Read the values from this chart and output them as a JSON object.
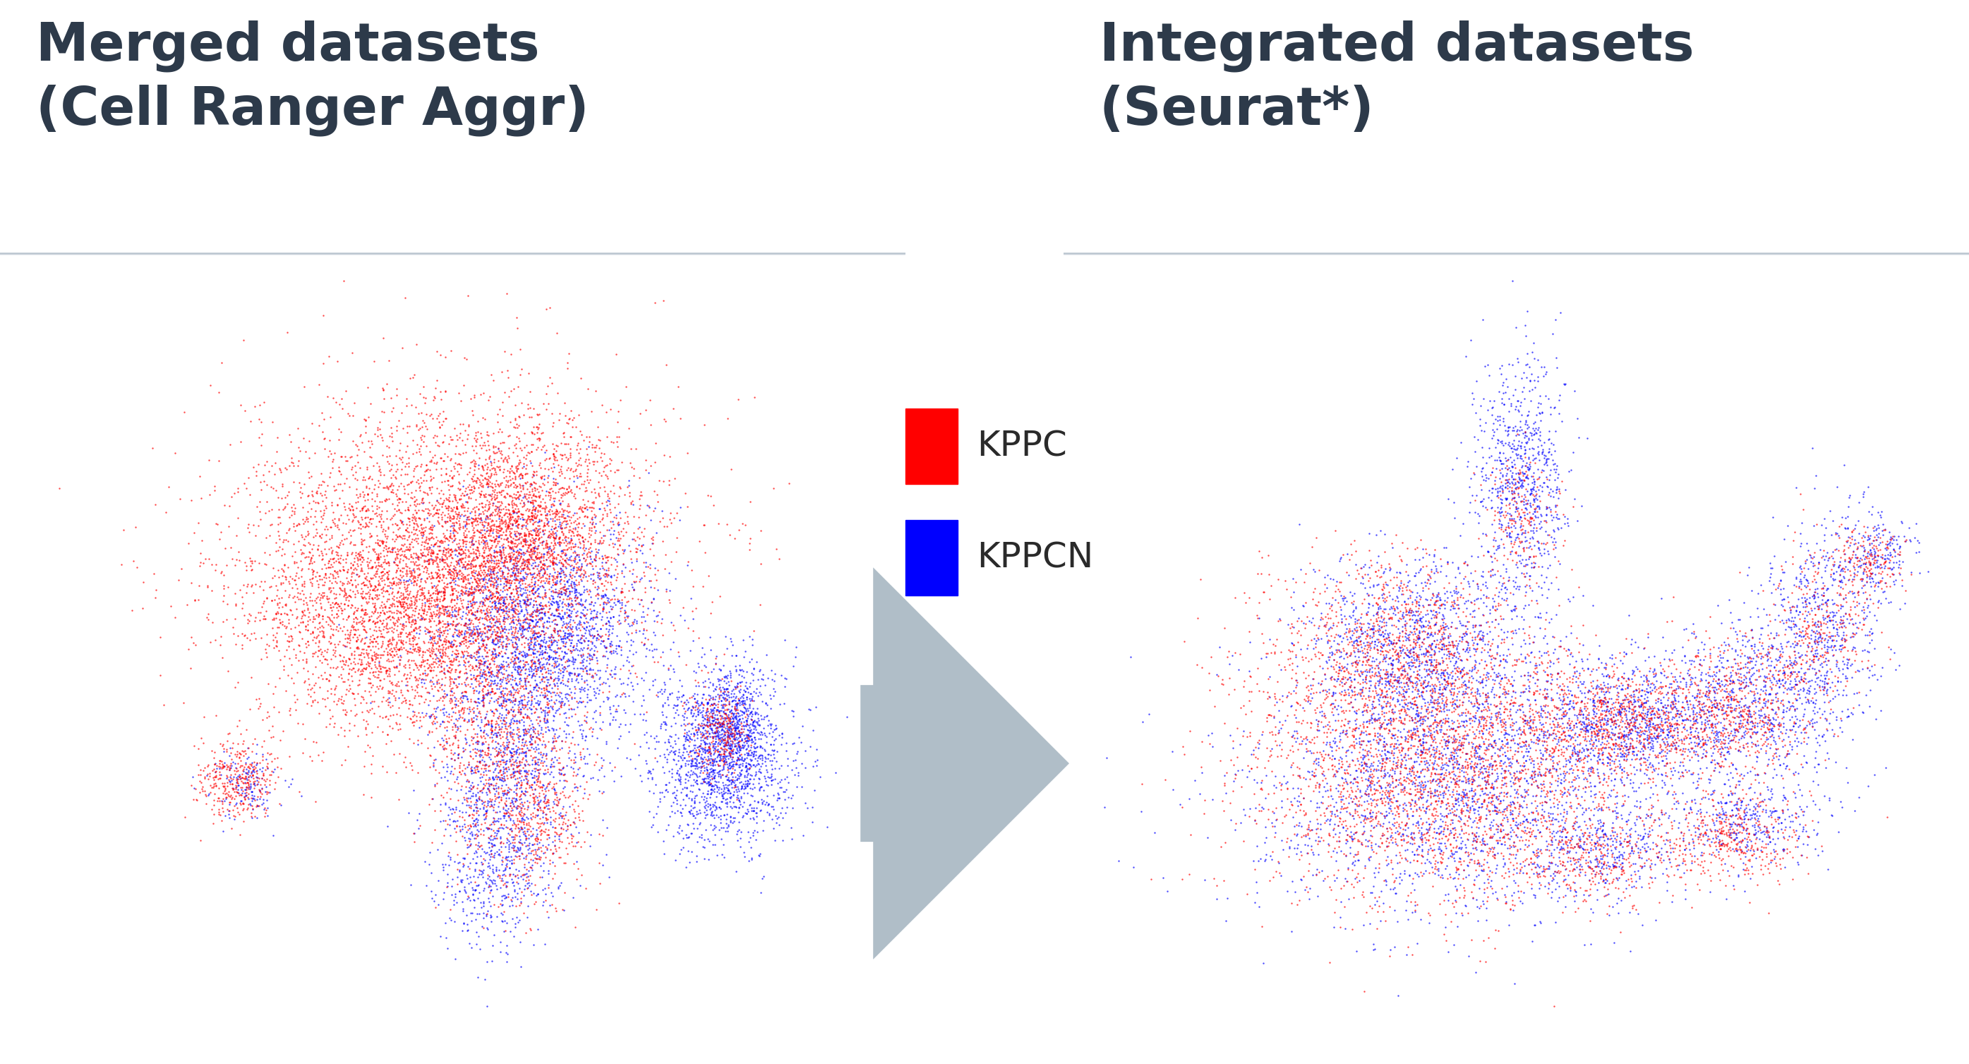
{
  "title_left": "Merged datasets\n(Cell Ranger Aggr)",
  "title_right": "Integrated datasets\n(Seurat*)",
  "legend_labels": [
    "KPPC",
    "KPPCN"
  ],
  "colors": [
    "#ff0000",
    "#0000ff"
  ],
  "background_color": "#ffffff",
  "header_color_top": "#bec8d2",
  "header_color_bottom": "#ffffff",
  "title_color": "#2d3a4a",
  "title_fontsize": 54,
  "legend_fontsize": 36,
  "point_size": 3,
  "alpha": 0.7,
  "arrow_color": "#b0bec8"
}
